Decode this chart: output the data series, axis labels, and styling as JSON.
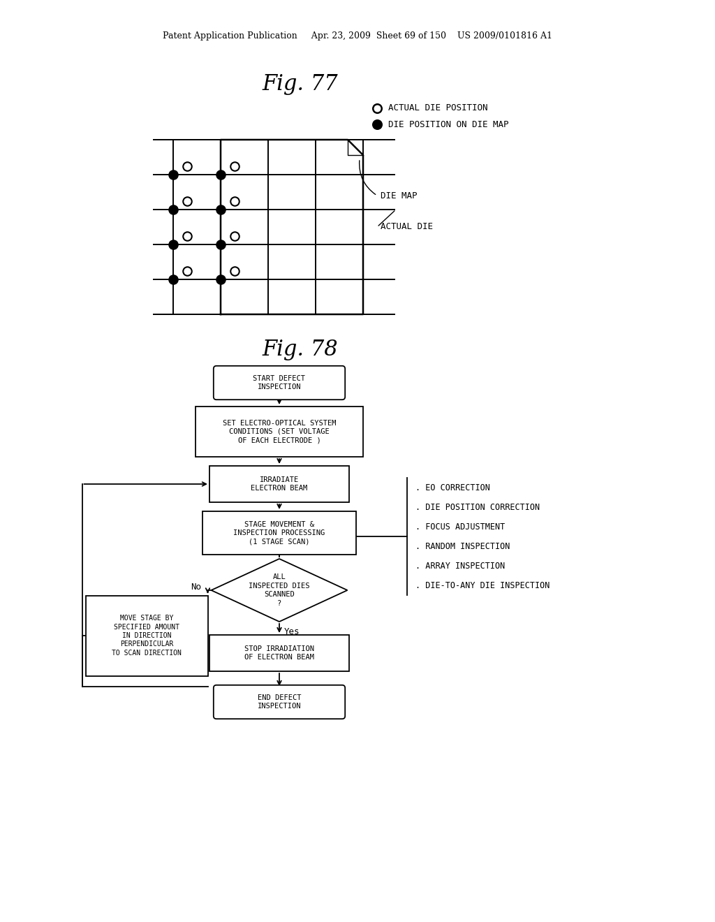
{
  "background_color": "#ffffff",
  "header_text": "Patent Application Publication     Apr. 23, 2009  Sheet 69 of 150    US 2009/0101816 A1",
  "fig77_title": "Fig. 77",
  "fig78_title": "Fig. 78",
  "legend_actual_die_pos": "ACTUAL DIE POSITION",
  "legend_die_map_pos": "DIE POSITION ON DIE MAP",
  "label_die_map": "DIE MAP",
  "label_actual_die": "ACTUAL DIE",
  "side_notes": [
    ". EO CORRECTION",
    ". DIE POSITION CORRECTION",
    ". FOCUS ADJUSTMENT",
    ". RANDOM INSPECTION",
    ". ARRAY INSPECTION",
    ". DIE-TO-ANY DIE INSPECTION"
  ]
}
